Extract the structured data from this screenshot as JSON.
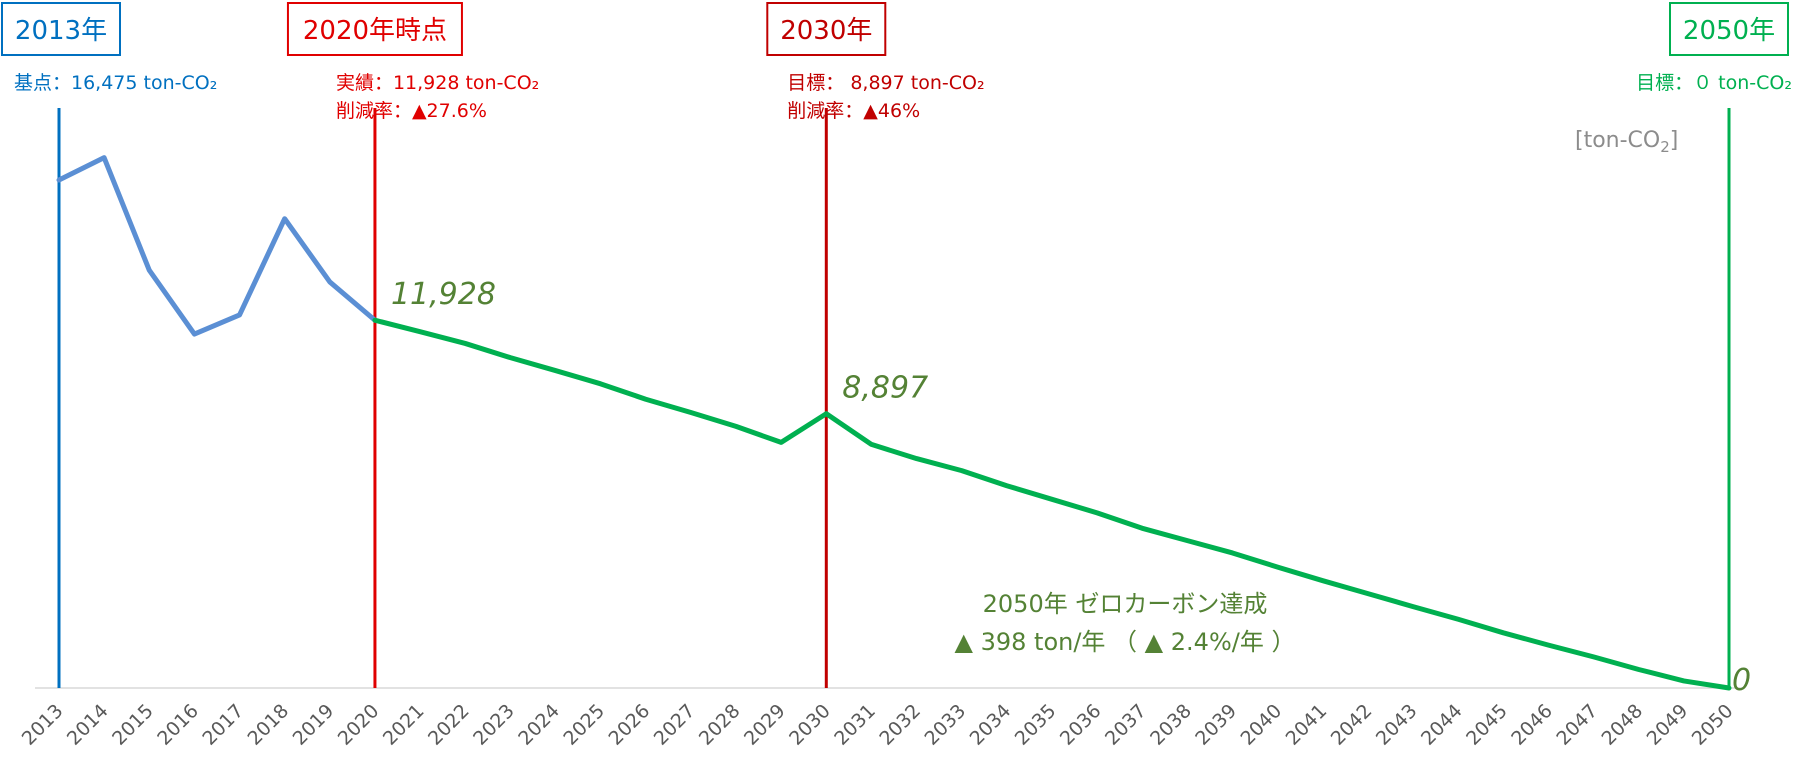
{
  "chart_data": {
    "type": "line",
    "x": [
      2013,
      2014,
      2015,
      2016,
      2017,
      2018,
      2019,
      2020,
      2021,
      2022,
      2023,
      2024,
      2025,
      2026,
      2027,
      2028,
      2029,
      2030,
      2031,
      2032,
      2033,
      2034,
      2035,
      2036,
      2037,
      2038,
      2039,
      2040,
      2041,
      2042,
      2043,
      2044,
      2045,
      2046,
      2047,
      2048,
      2049,
      2050
    ],
    "xlim": [
      2013,
      2050
    ],
    "ylim": [
      0,
      18000
    ],
    "unit_label_pre": "[ton-CO",
    "unit_label_sub": "2",
    "unit_label_post": "]",
    "series": [
      {
        "name": "actual",
        "color": "#5b8fd4",
        "x": [
          2013,
          2014,
          2015,
          2016,
          2017,
          2018,
          2019,
          2020
        ],
        "values": [
          16475,
          17200,
          13550,
          11480,
          12100,
          15220,
          13170,
          11928
        ]
      },
      {
        "name": "target",
        "color": "#00b050",
        "x": [
          2020,
          2021,
          2022,
          2023,
          2024,
          2025,
          2026,
          2027,
          2028,
          2029,
          2030,
          2031,
          2032,
          2033,
          2034,
          2035,
          2036,
          2037,
          2038,
          2039,
          2040,
          2041,
          2042,
          2043,
          2044,
          2045,
          2046,
          2047,
          2048,
          2049,
          2050
        ],
        "values": [
          11928,
          11555,
          11175,
          10715,
          10295,
          9865,
          9365,
          8935,
          8485,
          7965,
          8897,
          7900,
          7440,
          7050,
          6560,
          6120,
          5680,
          5180,
          4780,
          4380,
          3920,
          3480,
          3060,
          2640,
          2230,
          1790,
          1390,
          1010,
          600,
          230,
          0
        ]
      }
    ],
    "value_labels": [
      {
        "year": 2020,
        "value": 11928,
        "text": "11,928"
      },
      {
        "year": 2030,
        "value": 8897,
        "text": "8,897"
      },
      {
        "year": 2050,
        "value": 0,
        "text": "0"
      }
    ],
    "markers": [
      {
        "year": 2013,
        "title": "2013年",
        "color": "#0070c0",
        "lines": [
          "基点：16,475 ton-CO₂"
        ]
      },
      {
        "year": 2020,
        "title": "2020年時点",
        "color": "#e00000",
        "lines": [
          "実績：11,928 ton-CO₂",
          "削減率：▲27.6%"
        ]
      },
      {
        "year": 2030,
        "title": "2030年",
        "color": "#c00000",
        "lines": [
          "目標： 8,897 ton-CO₂",
          "削減率：▲46%"
        ]
      },
      {
        "year": 2050,
        "title": "2050年",
        "color": "#00b050",
        "lines": [
          "目標：０ ton-CO₂"
        ]
      }
    ],
    "annotations": [
      "2050年 ゼロカーボン達成",
      "▲ 398 ton/年 （ ▲ 2.4%/年 ）"
    ]
  }
}
